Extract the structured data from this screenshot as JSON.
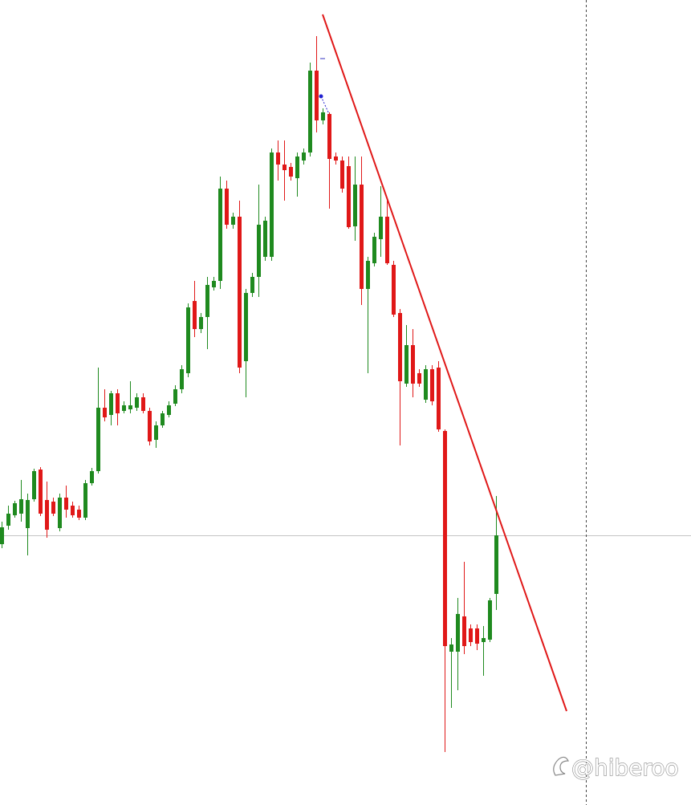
{
  "chart_data": {
    "type": "candlestick",
    "up_color": "#1f8a1f",
    "down_color": "#e01818",
    "ylim": [
      0,
      1003
    ],
    "open": [
      325,
      348,
      361,
      363,
      345,
      381,
      418,
      380,
      378,
      345,
      383,
      373,
      368,
      358,
      401,
      416,
      495,
      486,
      513,
      491,
      493,
      495,
      508,
      491,
      455,
      473,
      486,
      500,
      518,
      538,
      628,
      593,
      608,
      645,
      653,
      768,
      723,
      733,
      553,
      638,
      658,
      683,
      683,
      813,
      798,
      795,
      781,
      803,
      813,
      915,
      853,
      861,
      808,
      803,
      796,
      721,
      773,
      643,
      675,
      705,
      733,
      673,
      613,
      525,
      573,
      538,
      505,
      543,
      545,
      466,
      191,
      191,
      235,
      220,
      220,
      203,
      206,
      263
    ],
    "high": [
      353,
      373,
      379,
      405,
      388,
      419,
      421,
      403,
      383,
      388,
      398,
      378,
      373,
      405,
      420,
      545,
      518,
      516,
      518,
      503,
      528,
      513,
      513,
      495,
      478,
      491,
      503,
      523,
      548,
      625,
      653,
      613,
      658,
      658,
      783,
      778,
      738,
      753,
      643,
      663,
      773,
      733,
      818,
      828,
      828,
      800,
      813,
      818,
      925,
      958,
      868,
      863,
      813,
      808,
      808,
      808,
      808,
      683,
      713,
      771,
      753,
      678,
      618,
      598,
      593,
      543,
      548,
      548,
      553,
      468,
      208,
      258,
      303,
      225,
      225,
      223,
      258,
      385
    ],
    "low": [
      320,
      343,
      358,
      353,
      311,
      378,
      360,
      333,
      360,
      341,
      358,
      358,
      355,
      355,
      398,
      413,
      478,
      473,
      473,
      488,
      488,
      491,
      488,
      448,
      445,
      470,
      483,
      497,
      513,
      533,
      583,
      588,
      568,
      641,
      643,
      718,
      718,
      538,
      508,
      633,
      633,
      678,
      678,
      778,
      753,
      778,
      758,
      798,
      808,
      838,
      848,
      743,
      798,
      763,
      718,
      703,
      623,
      538,
      671,
      683,
      673,
      608,
      448,
      521,
      508,
      521,
      501,
      498,
      465,
      66,
      121,
      143,
      188,
      198,
      193,
      161,
      203,
      243
    ],
    "close": [
      346,
      363,
      376,
      381,
      380,
      416,
      363,
      343,
      363,
      383,
      368,
      361,
      358,
      401,
      416,
      495,
      483,
      513,
      488,
      498,
      498,
      508,
      491,
      453,
      473,
      488,
      498,
      518,
      543,
      620,
      593,
      608,
      648,
      653,
      768,
      723,
      733,
      545,
      638,
      658,
      723,
      728,
      813,
      798,
      791,
      783,
      808,
      813,
      915,
      853,
      863,
      805,
      803,
      768,
      720,
      773,
      643,
      678,
      708,
      733,
      675,
      611,
      528,
      573,
      525,
      525,
      543,
      503,
      468,
      198,
      200,
      238,
      198,
      203,
      201,
      208,
      255,
      336
    ],
    "watermark": "@hiberoo"
  }
}
